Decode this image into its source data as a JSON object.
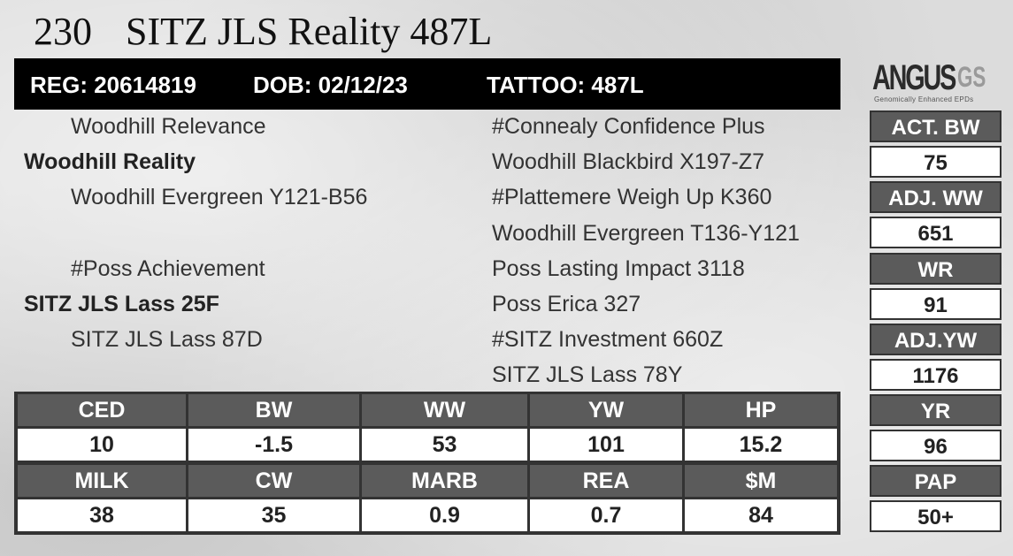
{
  "header": {
    "lot": "230",
    "name": "SITZ JLS Reality 487L"
  },
  "id_bar": {
    "reg": "REG: 20614819",
    "dob": "DOB: 02/12/23",
    "tattoo": "TATTOO: 487L"
  },
  "pedigree": {
    "sire_sire": "Woodhill Relevance",
    "sire": "Woodhill Reality",
    "sire_dam": "Woodhill Evergreen Y121-B56",
    "dam_sire": "#Poss Achievement",
    "dam": "SITZ JLS Lass 25F",
    "dam_dam": "SITZ JLS Lass 87D",
    "right": [
      "#Connealy Confidence Plus",
      "Woodhill Blackbird X197-Z7",
      "#Plattemere Weigh Up K360",
      "Woodhill Evergreen T136-Y121",
      "Poss Lasting Impact 3118",
      "Poss Erica 327",
      "#SITZ Investment 660Z",
      "SITZ JLS Lass 78Y"
    ]
  },
  "logo": {
    "main": "ANGUS",
    "suffix": "GS",
    "tagline": "Genomically Enhanced EPDs"
  },
  "side_stats": [
    {
      "label": "ACT. BW",
      "value": "75"
    },
    {
      "label": "ADJ. WW",
      "value": "651"
    },
    {
      "label": "WR",
      "value": "91"
    },
    {
      "label": "ADJ.YW",
      "value": "1176"
    },
    {
      "label": "YR",
      "value": "96"
    },
    {
      "label": "PAP",
      "value": "50+"
    }
  ],
  "epds": {
    "row1": [
      {
        "label": "CED",
        "value": "10"
      },
      {
        "label": "BW",
        "value": "-1.5"
      },
      {
        "label": "WW",
        "value": "53"
      },
      {
        "label": "YW",
        "value": "101"
      },
      {
        "label": "HP",
        "value": "15.2"
      }
    ],
    "row2": [
      {
        "label": "MILK",
        "value": "38"
      },
      {
        "label": "CW",
        "value": "35"
      },
      {
        "label": "MARB",
        "value": "0.9"
      },
      {
        "label": "REA",
        "value": "0.7"
      },
      {
        "label": "$M",
        "value": "84"
      }
    ]
  }
}
